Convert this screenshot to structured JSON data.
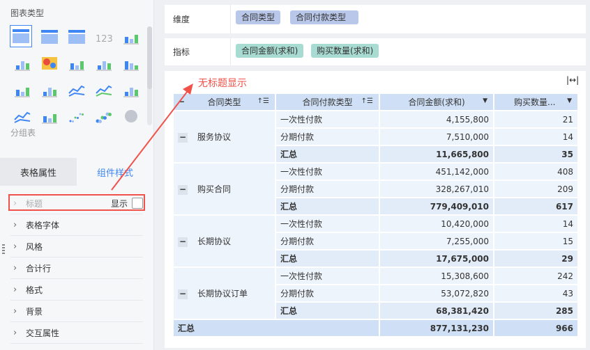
{
  "left": {
    "chart_type_title": "图表类型",
    "group_table_label": "分组表",
    "icons": [
      "table-icon",
      "grouped-table-icon",
      "cross-table-icon",
      "kpi-number-icon",
      "list-kpi-icon",
      "text-kpi-icon",
      "heatmap-icon",
      "grouped-bar-icon",
      "stacked-bar-icon",
      "bar-icon",
      "stacked-horizontal-icon",
      "waterfall-icon",
      "line-icon",
      "radar-line-icon",
      "radar-icon",
      "area-icon",
      "combo-bar-line-icon",
      "scatter-icon",
      "bubble-icon",
      "pie-icon"
    ],
    "tabs": [
      "表格属性",
      "组件样式"
    ],
    "active_tab": "组件样式",
    "items": [
      {
        "label": "标题",
        "disabled": true,
        "show_label": "显示",
        "checked": false
      },
      {
        "label": "表格字体"
      },
      {
        "label": "风格"
      },
      {
        "label": "合计行"
      },
      {
        "label": "格式"
      },
      {
        "label": "背景"
      },
      {
        "label": "交互属性"
      }
    ]
  },
  "dims": {
    "label": "维度",
    "pills": [
      "合同类型",
      "合同付款类型"
    ]
  },
  "measures": {
    "label": "指标",
    "pills": [
      "合同金额(求和)",
      "购买数量(求和)"
    ]
  },
  "annotation": "无标题显示",
  "accent": "#3f86f5",
  "annotation_color": "#f0524a",
  "table": {
    "headers": [
      "合同类型",
      "合同付款类型",
      "合同金额(求和)",
      "购买数量..."
    ],
    "groups": [
      {
        "name": "服务协议",
        "rows": [
          [
            "一次性付款",
            "4,155,800",
            "21"
          ],
          [
            "分期付款",
            "7,510,000",
            "14"
          ],
          [
            "汇总",
            "11,665,800",
            "35"
          ]
        ]
      },
      {
        "name": "购买合同",
        "rows": [
          [
            "一次性付款",
            "451,142,000",
            "408"
          ],
          [
            "分期付款",
            "328,267,010",
            "209"
          ],
          [
            "汇总",
            "779,409,010",
            "617"
          ]
        ]
      },
      {
        "name": "长期协议",
        "rows": [
          [
            "一次性付款",
            "10,420,000",
            "14"
          ],
          [
            "分期付款",
            "7,255,000",
            "15"
          ],
          [
            "汇总",
            "17,675,000",
            "29"
          ]
        ]
      },
      {
        "name": "长期协议订单",
        "rows": [
          [
            "一次性付款",
            "15,308,600",
            "242"
          ],
          [
            "分期付款",
            "53,072,820",
            "43"
          ],
          [
            "汇总",
            "68,381,420",
            "285"
          ]
        ]
      }
    ],
    "total": [
      "汇总",
      "877,131,230",
      "966"
    ]
  }
}
